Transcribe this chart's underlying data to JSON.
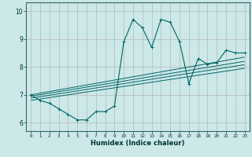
{
  "xlabel": "Humidex (Indice chaleur)",
  "xlim": [
    -0.5,
    23.5
  ],
  "ylim": [
    5.7,
    10.3
  ],
  "yticks": [
    6,
    7,
    8,
    9,
    10
  ],
  "xticks": [
    0,
    1,
    2,
    3,
    4,
    5,
    6,
    7,
    8,
    9,
    10,
    11,
    12,
    13,
    14,
    15,
    16,
    17,
    18,
    19,
    20,
    21,
    22,
    23
  ],
  "bg_color": "#cce8e8",
  "grid_color": "#b8b8b8",
  "line_color": "#006666",
  "main_x": [
    0,
    1,
    2,
    3,
    4,
    5,
    6,
    7,
    8,
    9,
    10,
    11,
    12,
    13,
    14,
    15,
    16,
    17,
    18,
    19,
    20,
    21,
    22,
    23
  ],
  "main_y": [
    7.0,
    6.8,
    6.7,
    6.5,
    6.3,
    6.1,
    6.1,
    6.4,
    6.4,
    6.6,
    8.9,
    9.7,
    9.4,
    8.7,
    9.7,
    9.6,
    8.9,
    7.4,
    8.3,
    8.1,
    8.15,
    8.6,
    8.5,
    8.5
  ],
  "trends": [
    {
      "x": [
        0,
        23
      ],
      "y": [
        7.0,
        8.35
      ]
    },
    {
      "x": [
        0,
        23
      ],
      "y": [
        6.95,
        8.2
      ]
    },
    {
      "x": [
        0,
        23
      ],
      "y": [
        6.88,
        8.08
      ]
    },
    {
      "x": [
        0,
        23
      ],
      "y": [
        6.8,
        7.95
      ]
    }
  ]
}
